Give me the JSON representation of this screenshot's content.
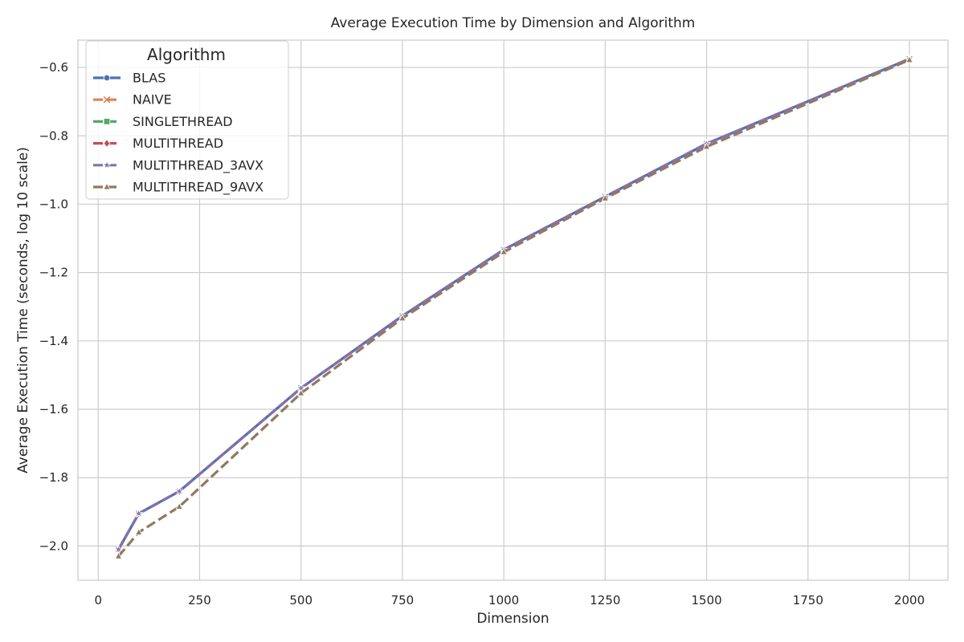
{
  "chart_data": {
    "type": "line",
    "title": "Average Execution Time by Dimension and Algorithm",
    "xlabel": "Dimension",
    "ylabel": "Average Execution Time (seconds, log 10 scale)",
    "xlim": [
      -50,
      2095
    ],
    "ylim": [
      -2.1,
      -0.52
    ],
    "xticks": [
      0,
      250,
      500,
      750,
      1000,
      1250,
      1500,
      1750,
      2000
    ],
    "yticks": [
      -2.0,
      -1.8,
      -1.6,
      -1.4,
      -1.2,
      -1.0,
      -0.8,
      -0.6
    ],
    "xtick_labels": [
      "0",
      "250",
      "500",
      "750",
      "1000",
      "1250",
      "1500",
      "1750",
      "2000"
    ],
    "ytick_labels": [
      "−2.0",
      "−1.8",
      "−1.6",
      "−1.4",
      "−1.2",
      "−1.0",
      "−0.8",
      "−0.6"
    ],
    "grid": true,
    "legend": {
      "title": "Algorithm",
      "position": "top-left"
    },
    "x": [
      50,
      100,
      200,
      500,
      750,
      1000,
      1250,
      1500,
      2000
    ],
    "series": [
      {
        "name": "BLAS",
        "color": "#4c72b0",
        "dash": "solid",
        "marker": "circle",
        "values": [
          -2.01,
          -1.905,
          -1.84,
          -1.538,
          -1.327,
          -1.133,
          -0.978,
          -0.823,
          -0.575
        ]
      },
      {
        "name": "NAIVE",
        "color": "#dd8452",
        "dash": "dashed",
        "marker": "x",
        "values": [
          -2.01,
          -1.905,
          -1.84,
          -1.538,
          -1.327,
          -1.133,
          -0.978,
          -0.823,
          -0.575
        ]
      },
      {
        "name": "SINGLETHREAD",
        "color": "#55a868",
        "dash": "dashed",
        "marker": "square",
        "values": [
          -2.01,
          -1.905,
          -1.84,
          -1.538,
          -1.327,
          -1.133,
          -0.978,
          -0.823,
          -0.575
        ]
      },
      {
        "name": "MULTITHREAD",
        "color": "#c44e52",
        "dash": "dashed",
        "marker": "diamond",
        "values": [
          -2.01,
          -1.905,
          -1.84,
          -1.538,
          -1.327,
          -1.133,
          -0.978,
          -0.823,
          -0.575
        ]
      },
      {
        "name": "MULTITHREAD_3AVX",
        "color": "#8172b3",
        "dash": "dashed",
        "marker": "star",
        "values": [
          -2.01,
          -1.905,
          -1.84,
          -1.538,
          -1.327,
          -1.133,
          -0.978,
          -0.823,
          -0.575
        ]
      },
      {
        "name": "MULTITHREAD_9AVX",
        "color": "#937860",
        "dash": "dashed",
        "marker": "triangle",
        "values": [
          -2.03,
          -1.96,
          -1.885,
          -1.553,
          -1.334,
          -1.14,
          -0.983,
          -0.832,
          -0.578
        ]
      }
    ]
  }
}
